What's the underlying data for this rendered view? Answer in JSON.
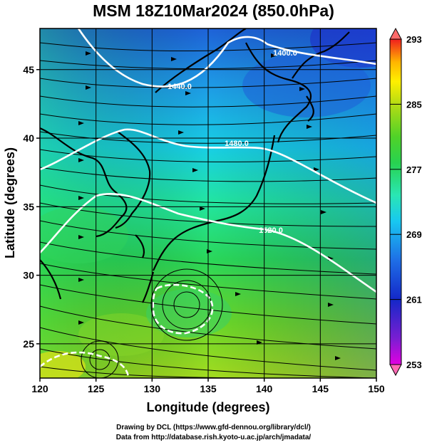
{
  "title": "MSM 18Z10Mar2024 (850.0hPa)",
  "x_axis": {
    "label": "Longitude (degrees)",
    "range": [
      120,
      150
    ],
    "ticks": [
      "120",
      "125",
      "130",
      "135",
      "140",
      "145",
      "150"
    ]
  },
  "y_axis": {
    "label": "Latitude  (degrees)",
    "range": [
      22.5,
      48
    ],
    "ticks": [
      "25",
      "30",
      "35",
      "40",
      "45"
    ]
  },
  "colorbar": {
    "ticks": [
      "253",
      "261",
      "269",
      "277",
      "285",
      "293"
    ],
    "colors": [
      "#e100e1",
      "#7a1ed2",
      "#1428c8",
      "#1e6ee6",
      "#18c8f0",
      "#2ae6b4",
      "#28d250",
      "#50d228",
      "#b4dc14",
      "#fff000",
      "#ffb400",
      "#ff6e00",
      "#f01e1e"
    ],
    "min_color": "#ff69b4",
    "max_color": "#ff6a6a"
  },
  "contour_labels": [
    "1400.0",
    "1440.0",
    "1480.0",
    "1520.0"
  ],
  "footer": {
    "line1": "Drawing by DCL (https://www.gfd-dennou.org/library/dcl/)",
    "line2": "Data from http://database.rish.kyoto-u.ac.jp/arch/jmadata/"
  }
}
